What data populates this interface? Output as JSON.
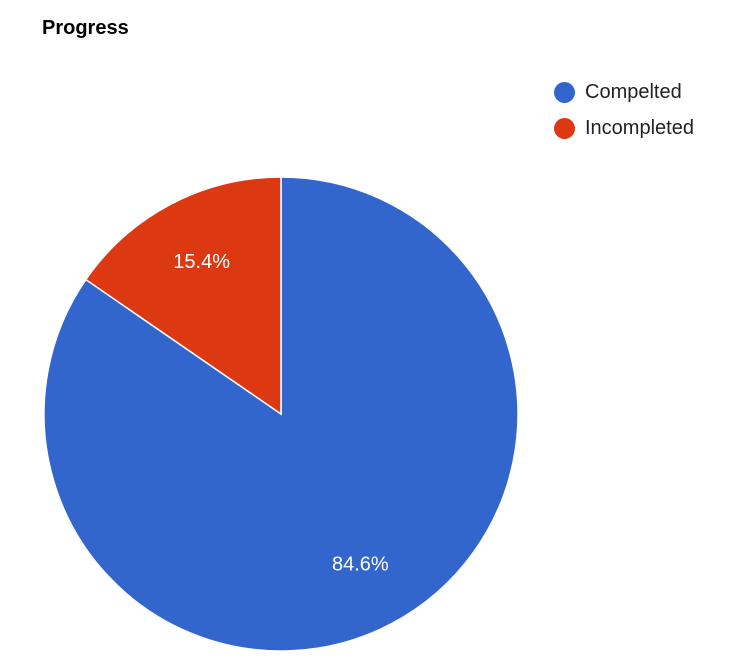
{
  "chart_data": {
    "type": "pie",
    "title": "Progress",
    "legend_position": "top-right",
    "slices": [
      {
        "name": "Compelted",
        "value": 84.6,
        "label": "84.6%",
        "color": "#3366cc"
      },
      {
        "name": "Incompleted",
        "value": 15.4,
        "label": "15.4%",
        "color": "#dc3912"
      }
    ]
  }
}
